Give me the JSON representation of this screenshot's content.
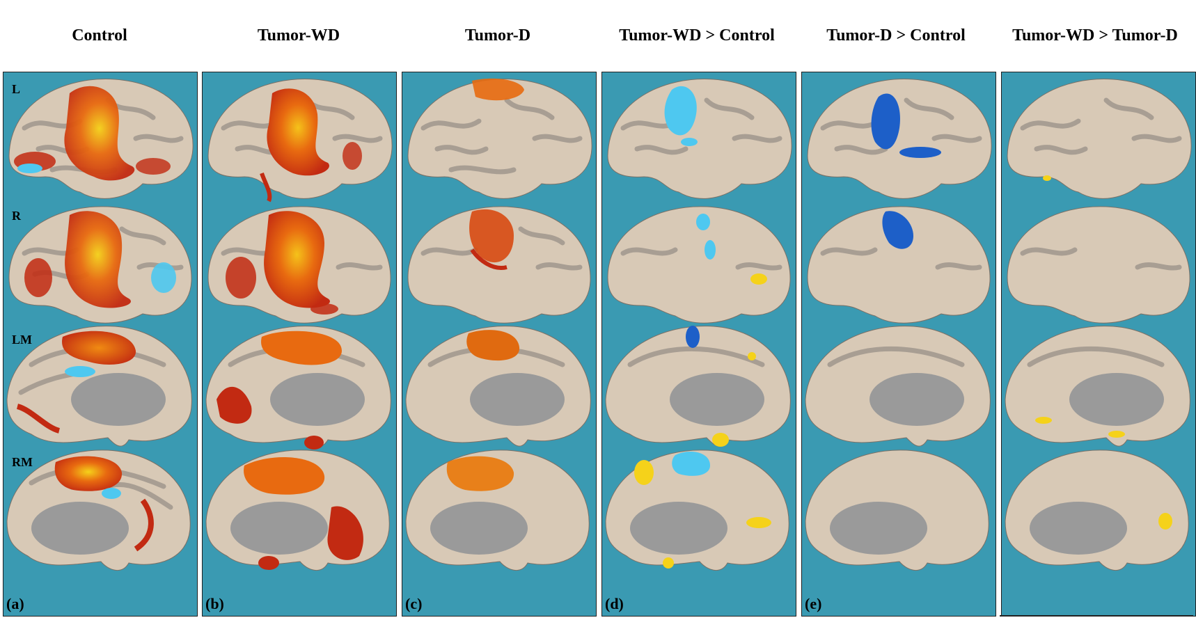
{
  "columns": [
    {
      "title": "Control",
      "letter": "(a)"
    },
    {
      "title": "Tumor-WD",
      "letter": "(b)"
    },
    {
      "title": "Tumor-D",
      "letter": "(c)"
    },
    {
      "title": "Tumor-WD > Control",
      "letter": "(d)"
    },
    {
      "title": "Tumor-D > Control",
      "letter": "(e)"
    },
    {
      "title": "Tumor-WD > Tumor-D",
      "letter": ""
    }
  ],
  "rows": [
    "L",
    "R",
    "LM",
    "RM"
  ],
  "colors": {
    "background": "#3a9ab2",
    "brain": "#d8c9b6",
    "sulci": "#a89e93",
    "medial_wall": "#9a9a9a",
    "activation_red": "#c22a12",
    "activation_orange": "#e86a10",
    "activation_yellow": "#f5d21a",
    "deactivation_light_blue": "#4ec8f0",
    "deactivation_dark_blue": "#1d5fc8"
  }
}
